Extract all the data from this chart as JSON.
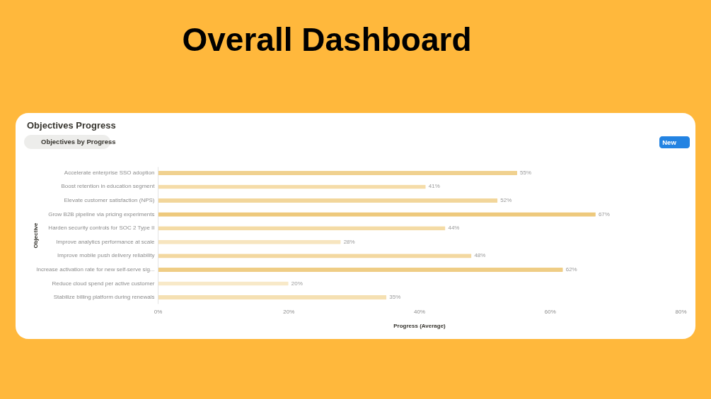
{
  "chart_data": {
    "type": "bar",
    "orientation": "horizontal",
    "title": "Overall Dashboard",
    "subtitle": "Objectives Progress",
    "annotations": [
      "Objectives by Progress",
      "New"
    ],
    "categories": [
      "Accelerate enterprise SSO adoption",
      "Boost retention in education segment",
      "Elevate customer satisfaction (NPS)",
      "Grow B2B pipeline via pricing experiments",
      "Harden security controls for SOC 2 Type II",
      "Improve analytics performance at scale",
      "Improve mobile push delivery reliability",
      "Increase activation rate for new self-serve sig...",
      "Reduce cloud spend per active customer",
      "Stabilize billing platform during renewals"
    ],
    "values": [
      55,
      41,
      52,
      67,
      44,
      28,
      48,
      62,
      20,
      35
    ],
    "value_labels": [
      "55%",
      "41%",
      "52%",
      "67%",
      "44%",
      "28%",
      "48%",
      "62%",
      "20%",
      "35%"
    ],
    "colors": [
      "#f0d18f",
      "#f5dca8",
      "#f2d69b",
      "#eec97c",
      "#f4dba5",
      "#f7e5bf",
      "#f3d8a0",
      "#efcd85",
      "#f8e9c8",
      "#f5e0b2"
    ],
    "xlim": [
      0,
      80
    ],
    "xticks": [
      {
        "value": 0,
        "label": "0%"
      },
      {
        "value": 20,
        "label": "20%"
      },
      {
        "value": 40,
        "label": "40%"
      },
      {
        "value": 60,
        "label": "60%"
      },
      {
        "value": 80,
        "label": "80%"
      }
    ],
    "xlabel": "Progress (Average)",
    "ylabel": "Objective",
    "grid": false
  }
}
